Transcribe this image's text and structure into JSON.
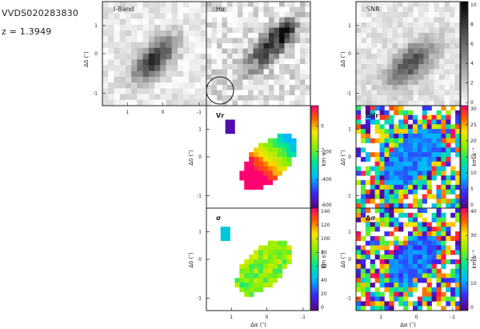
{
  "object": {
    "name": "VVDS020283830",
    "redshift": "z = 1.3949"
  },
  "panels": {
    "iband": {
      "label": "I-Band"
    },
    "halpha": {
      "label": "Hα"
    },
    "snr": {
      "label": "SNR",
      "colorbar_ticks": [
        "0",
        "2",
        "4",
        "6",
        "8",
        "10"
      ]
    },
    "vr": {
      "label": "Vr",
      "colorbar_ticks": [
        "0",
        "-200",
        "-400",
        "-600"
      ],
      "colorbar_unit": "km s⁻¹"
    },
    "dvr": {
      "label": "ΔVr",
      "colorbar_ticks": [
        "0",
        "5",
        "10",
        "15",
        "20",
        "25",
        "30"
      ],
      "colorbar_unit": "km s⁻¹"
    },
    "sigma": {
      "label": "σ",
      "colorbar_ticks": [
        "0",
        "20",
        "40",
        "60",
        "80",
        "100",
        "120",
        "140"
      ],
      "colorbar_unit": "km s⁻¹"
    },
    "dsigma": {
      "label": "Δσ",
      "colorbar_ticks": [
        "0",
        "10",
        "20",
        "30",
        "40"
      ],
      "colorbar_unit": "km s⁻¹"
    }
  },
  "axes": {
    "ylabel": "Δδ (″)",
    "xlabel": "Δα (″)",
    "y_ticks": [
      "1",
      "0",
      "-1"
    ],
    "x_ticks": [
      "1",
      "0",
      "-1"
    ]
  },
  "colors": {
    "frame": "#222222"
  }
}
